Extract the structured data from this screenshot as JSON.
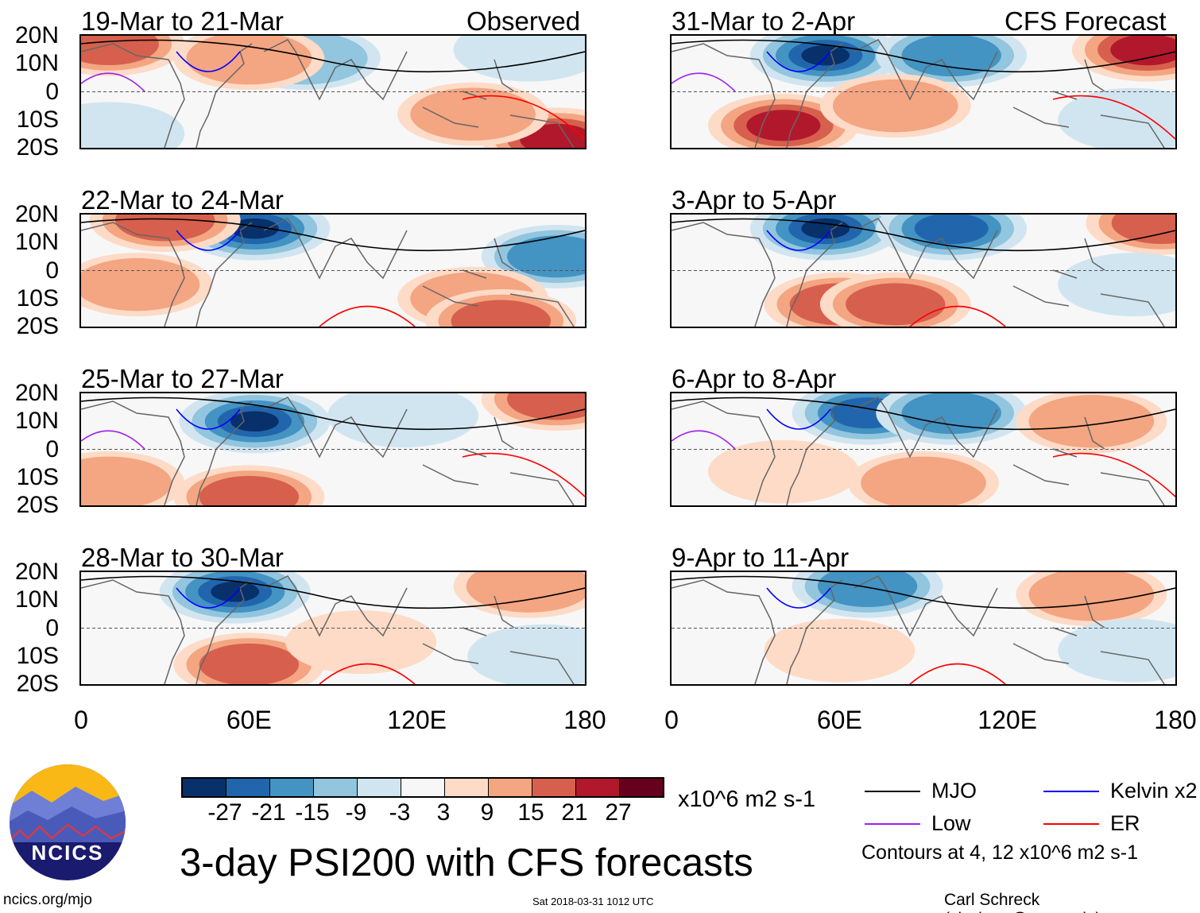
{
  "header": {
    "observed_label": "Observed",
    "forecast_label": "CFS Forecast"
  },
  "lat_labels": [
    "20N",
    "10N",
    "0",
    "10S",
    "20S"
  ],
  "lon_labels": [
    "0",
    "60E",
    "120E",
    "180"
  ],
  "colorbar": {
    "colors": [
      "#08306b",
      "#2166ac",
      "#4393c3",
      "#92c5de",
      "#d1e5f0",
      "#f7f7f7",
      "#fddbc7",
      "#f4a582",
      "#d6604d",
      "#b2182b",
      "#67001f"
    ],
    "ticks": [
      "-27",
      "-21",
      "-15",
      "-9",
      "-3",
      "3",
      "9",
      "15",
      "21",
      "27"
    ],
    "units": "x10^6 m2 s-1"
  },
  "title": "3-day PSI200 with CFS forecasts",
  "legend": {
    "items": [
      {
        "label": "MJO",
        "color": "#000000"
      },
      {
        "label": "Kelvin x2",
        "color": "#0000ff"
      },
      {
        "label": "Low",
        "color": "#a020f0"
      },
      {
        "label": "ER",
        "color": "#ff0000"
      }
    ],
    "note": "Contours at 4, 12 x10^6 m2 s-1"
  },
  "footer": {
    "url": "ncics.org/mjo",
    "timestamp": "Sat 2018-03-31 1012 UTC",
    "author": "Carl Schreck (cjschrec@ncsu.edu)"
  },
  "logo_text": "NCICS",
  "chart_data": {
    "type": "heatmap",
    "variable": "PSI200 anomaly",
    "units": "x10^6 m2 s-1",
    "xlim": [
      0,
      180
    ],
    "ylim": [
      -20,
      20
    ],
    "panels": [
      {
        "title": "19-Mar to 21-Mar",
        "kind": "Observed",
        "anomalies": [
          {
            "lon": 10,
            "lat": 17,
            "value": 15
          },
          {
            "lon": 80,
            "lat": 12,
            "value": -9
          },
          {
            "lon": 160,
            "lat": 15,
            "value": -6
          },
          {
            "lon": 170,
            "lat": -17,
            "value": 21
          },
          {
            "lon": 140,
            "lat": -8,
            "value": 9
          },
          {
            "lon": 10,
            "lat": -15,
            "value": -6
          },
          {
            "lon": 60,
            "lat": 12,
            "value": 9
          }
        ]
      },
      {
        "title": "22-Mar to 24-Mar",
        "kind": "Observed",
        "anomalies": [
          {
            "lon": 62,
            "lat": 15,
            "value": -27
          },
          {
            "lon": 170,
            "lat": 5,
            "value": -15
          },
          {
            "lon": 140,
            "lat": -10,
            "value": 9
          },
          {
            "lon": 150,
            "lat": -18,
            "value": 15
          },
          {
            "lon": 30,
            "lat": 18,
            "value": 15
          },
          {
            "lon": 20,
            "lat": -5,
            "value": 9
          }
        ]
      },
      {
        "title": "25-Mar to 27-Mar",
        "kind": "Observed",
        "anomalies": [
          {
            "lon": 62,
            "lat": 10,
            "value": -27
          },
          {
            "lon": 170,
            "lat": 18,
            "value": 15
          },
          {
            "lon": 60,
            "lat": -17,
            "value": 15
          },
          {
            "lon": 10,
            "lat": -12,
            "value": 9
          },
          {
            "lon": 115,
            "lat": 12,
            "value": -6
          }
        ]
      },
      {
        "title": "28-Mar to 30-Mar",
        "kind": "Observed",
        "anomalies": [
          {
            "lon": 55,
            "lat": 13,
            "value": -27
          },
          {
            "lon": 60,
            "lat": -13,
            "value": 15
          },
          {
            "lon": 160,
            "lat": 15,
            "value": 9
          },
          {
            "lon": 100,
            "lat": -5,
            "value": 6
          },
          {
            "lon": 165,
            "lat": -10,
            "value": -6
          }
        ]
      },
      {
        "title": "31-Mar to 2-Apr",
        "kind": "CFS Forecast",
        "anomalies": [
          {
            "lon": 55,
            "lat": 13,
            "value": -33
          },
          {
            "lon": 100,
            "lat": 13,
            "value": -15
          },
          {
            "lon": 40,
            "lat": -12,
            "value": 21
          },
          {
            "lon": 170,
            "lat": 15,
            "value": 21
          },
          {
            "lon": 80,
            "lat": -5,
            "value": 9
          },
          {
            "lon": 165,
            "lat": -10,
            "value": -6
          }
        ]
      },
      {
        "title": "3-Apr to 5-Apr",
        "kind": "CFS Forecast",
        "anomalies": [
          {
            "lon": 55,
            "lat": 15,
            "value": -27
          },
          {
            "lon": 100,
            "lat": 15,
            "value": -21
          },
          {
            "lon": 60,
            "lat": -12,
            "value": 15
          },
          {
            "lon": 80,
            "lat": -12,
            "value": 15
          },
          {
            "lon": 175,
            "lat": 17,
            "value": 15
          },
          {
            "lon": 165,
            "lat": -5,
            "value": -6
          }
        ]
      },
      {
        "title": "6-Apr to 8-Apr",
        "kind": "CFS Forecast",
        "anomalies": [
          {
            "lon": 70,
            "lat": 13,
            "value": -21
          },
          {
            "lon": 100,
            "lat": 13,
            "value": -15
          },
          {
            "lon": 40,
            "lat": -8,
            "value": 6
          },
          {
            "lon": 90,
            "lat": -12,
            "value": 9
          },
          {
            "lon": 150,
            "lat": 10,
            "value": 9
          }
        ]
      },
      {
        "title": "9-Apr to 11-Apr",
        "kind": "CFS Forecast",
        "anomalies": [
          {
            "lon": 70,
            "lat": 15,
            "value": -15
          },
          {
            "lon": 150,
            "lat": 12,
            "value": 9
          },
          {
            "lon": 60,
            "lat": -8,
            "value": 6
          },
          {
            "lon": 165,
            "lat": -8,
            "value": -6
          }
        ]
      }
    ]
  }
}
